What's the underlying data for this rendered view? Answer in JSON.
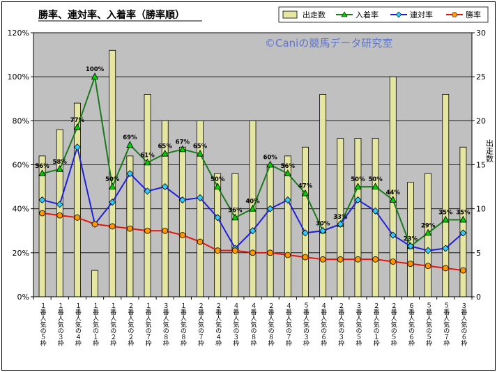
{
  "chart_data": {
    "type": "bar+line",
    "title": "勝率、連対率、入着率（勝率順）",
    "watermark": "©Caniの競馬データ研究室",
    "y2label": "出走数",
    "ylim": [
      0,
      120
    ],
    "y2lim": [
      0,
      30
    ],
    "yticks": [
      "0%",
      "20%",
      "40%",
      "60%",
      "80%",
      "100%",
      "120%"
    ],
    "y2ticks": [
      "0",
      "5",
      "10",
      "15",
      "20",
      "25",
      "30"
    ],
    "categories": [
      "１番人気の５枠",
      "１番人気の３枠",
      "１番人気の４枠",
      "１番人気の１枠",
      "１番人気の２枠",
      "２番人気の２枠",
      "１番人気の７枠",
      "３番人気の８枠",
      "１番人気の８枠",
      "２番人気の７枠",
      "２番人気の４枠",
      "４番人気の３枠",
      "４番人気の８枠",
      "２番人気の８枠",
      "４番人気の７枠",
      "５番人気の３枠",
      "４番人気の６枠",
      "２番人気の３枠",
      "３番人気の５枠",
      "２番人気の１枠",
      "２番人気の５枠",
      "６番人気の６枠",
      "５番人気の５枠",
      "５番人気の７枠",
      "３番人気の６枠"
    ],
    "series": [
      {
        "name": "出走数",
        "type": "bar",
        "axis": "right",
        "color": "#e6e6a3",
        "values": [
          16,
          19,
          22,
          3,
          28,
          16,
          23,
          20,
          17,
          20,
          14,
          14,
          20,
          15,
          16,
          17,
          23,
          18,
          18,
          18,
          25,
          13,
          14,
          23,
          17
        ]
      },
      {
        "name": "入着率",
        "type": "line",
        "axis": "left",
        "color": "#1a7a1a",
        "values": [
          56,
          58,
          77,
          100,
          50,
          69,
          61,
          65,
          67,
          65,
          50,
          36,
          40,
          60,
          56,
          47,
          30,
          33,
          50,
          50,
          44,
          23,
          29,
          35,
          35
        ]
      },
      {
        "name": "連対率",
        "type": "line",
        "axis": "left",
        "color": "#1f1fd6",
        "values": [
          44,
          42,
          68,
          33,
          43,
          56,
          48,
          50,
          44,
          45,
          36,
          22,
          30,
          40,
          44,
          29,
          30,
          33,
          44,
          39,
          28,
          23,
          21,
          22,
          29
        ]
      },
      {
        "name": "勝率",
        "type": "line",
        "axis": "left",
        "color": "#e0150c",
        "values": [
          38,
          37,
          36,
          33,
          32,
          31,
          30,
          30,
          28,
          25,
          21,
          21,
          20,
          20,
          19,
          18,
          17,
          17,
          17,
          17,
          16,
          15,
          14,
          13,
          12
        ]
      }
    ],
    "data_labels": [
      "56%",
      "58%",
      "77%",
      "100%",
      "50%",
      "69%",
      "61%",
      "65%",
      "67%",
      "65%",
      "50%",
      "36%",
      "40%",
      "60%",
      "56%",
      "47%",
      "30%",
      "33%",
      "50%",
      "50%",
      "44%",
      "23%",
      "29%",
      "35%",
      "35%"
    ],
    "grid": true,
    "legend": "top-right"
  }
}
